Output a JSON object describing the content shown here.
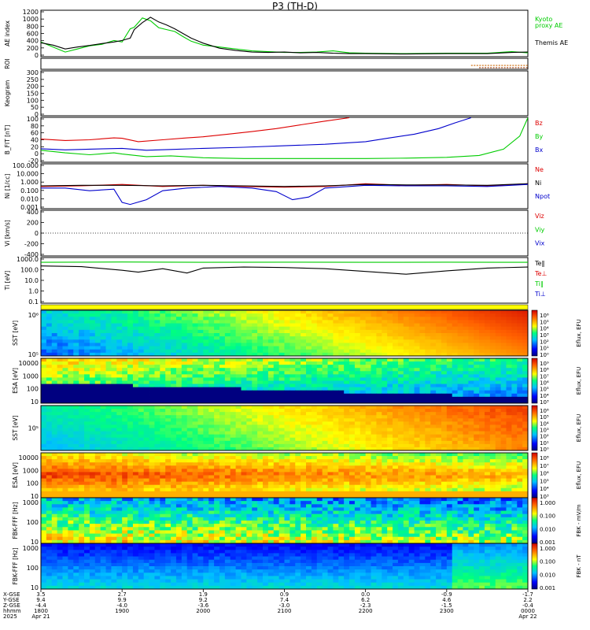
{
  "title": "P3 (TH-D)",
  "chart_data": [
    {
      "id": "ae",
      "type": "line",
      "ylabel": "AE index",
      "ylim": [
        0,
        1200
      ],
      "yticks": [
        "1200",
        "1000",
        "800",
        "600",
        "400",
        "200",
        "0"
      ],
      "legend": [
        "Kyoto",
        "proxy AE",
        "Themis AE"
      ],
      "series": [
        {
          "name": "Kyoto proxy AE",
          "color": "#00cc00",
          "x": [
            0,
            0.15,
            0.3,
            0.45,
            0.6,
            0.75,
            0.9,
            1.0,
            1.1,
            1.15,
            1.25,
            1.35,
            1.45,
            1.55,
            1.65,
            1.75,
            1.85,
            2.0,
            2.2,
            2.4,
            2.6,
            2.8,
            3.0,
            3.2,
            3.4,
            3.6,
            3.8,
            4.0,
            4.5,
            5.0,
            5.5,
            5.8,
            6.0
          ],
          "y": [
            380,
            250,
            120,
            200,
            280,
            320,
            420,
            380,
            720,
            760,
            1000,
            930,
            750,
            700,
            650,
            520,
            400,
            300,
            250,
            200,
            150,
            130,
            110,
            110,
            120,
            150,
            100,
            90,
            80,
            90,
            90,
            130,
            100
          ]
        },
        {
          "name": "Themis AE",
          "color": "#000000",
          "x": [
            0,
            0.15,
            0.3,
            0.45,
            0.6,
            0.75,
            0.9,
            1.0,
            1.1,
            1.15,
            1.25,
            1.35,
            1.45,
            1.55,
            1.65,
            1.75,
            1.85,
            2.0,
            2.2,
            2.4,
            2.6,
            2.8,
            3.0,
            3.2,
            3.4,
            3.6,
            3.8,
            4.0,
            4.5,
            5.0,
            5.5,
            5.8,
            6.0
          ],
          "y": [
            360,
            300,
            200,
            250,
            290,
            340,
            380,
            420,
            480,
            700,
            880,
            1020,
            900,
            820,
            720,
            600,
            480,
            350,
            220,
            160,
            120,
            110,
            120,
            100,
            110,
            90,
            80,
            80,
            70,
            80,
            80,
            110,
            120
          ]
        }
      ]
    },
    {
      "id": "roi",
      "type": "line",
      "ylabel": "ROI",
      "ylim": [
        0,
        1
      ],
      "series": [
        {
          "name": "",
          "color": "#cc6600",
          "x": [
            5.3,
            6.0
          ],
          "y": [
            0.35,
            0.35
          ]
        },
        {
          "name": "",
          "color": "#993300",
          "x": [
            5.4,
            6.0
          ],
          "y": [
            0.15,
            0.15
          ]
        }
      ]
    },
    {
      "id": "keogram",
      "type": "line",
      "ylabel": "Keogram",
      "ylim": [
        0,
        300
      ],
      "yticks": [
        "300",
        "250",
        "200",
        "150",
        "100",
        "50",
        "0"
      ],
      "series": []
    },
    {
      "id": "bfield",
      "type": "line",
      "ylabel": "B_FIT [nT]",
      "ylim": [
        -20,
        100
      ],
      "yticks": [
        "100",
        "80",
        "60",
        "40",
        "20",
        "0",
        "-20"
      ],
      "legend": [
        "Bz",
        "By",
        "Bx"
      ],
      "series": [
        {
          "name": "Bz",
          "color": "#dd0000",
          "x": [
            0,
            0.3,
            0.6,
            0.9,
            1.0,
            1.2,
            1.5,
            1.8,
            2.0,
            2.3,
            2.6,
            2.9,
            3.2,
            3.5,
            3.8
          ],
          "y": [
            42,
            38,
            40,
            45,
            44,
            35,
            40,
            45,
            48,
            55,
            62,
            70,
            80,
            90,
            99
          ]
        },
        {
          "name": "By",
          "color": "#00cc00",
          "x": [
            0,
            0.3,
            0.6,
            0.9,
            1.0,
            1.3,
            1.6,
            2.0,
            2.5,
            3.0,
            3.5,
            4.0,
            4.5,
            5.0,
            5.4,
            5.7,
            5.9,
            6.0
          ],
          "y": [
            12,
            5,
            0,
            5,
            2,
            -5,
            -3,
            -8,
            -10,
            -10,
            -10,
            -10,
            -9,
            -7,
            -2,
            15,
            50,
            99
          ]
        },
        {
          "name": "Bx",
          "color": "#0000cc",
          "x": [
            0,
            0.3,
            0.6,
            1.0,
            1.3,
            1.6,
            2.0,
            2.5,
            3.0,
            3.5,
            4.0,
            4.3,
            4.6,
            4.9,
            5.1,
            5.3
          ],
          "y": [
            16,
            13,
            15,
            17,
            12,
            14,
            17,
            20,
            24,
            28,
            35,
            45,
            55,
            70,
            85,
            99
          ]
        }
      ]
    },
    {
      "id": "density",
      "type": "line",
      "ylabel": "Ni [1/cc]",
      "yscale": "log",
      "ylim": [
        0.001,
        100
      ],
      "yticks": [
        "100.000",
        "10.000",
        "1.000",
        "0.100",
        "0.010",
        "0.001"
      ],
      "legend": [
        "Ne",
        "Ni",
        "Npot"
      ],
      "series": [
        {
          "name": "Ne",
          "color": "#dd0000",
          "x": [
            0,
            0.5,
            1.0,
            1.5,
            2.0,
            2.5,
            3.0,
            3.5,
            4.0,
            4.5,
            5.0,
            5.5,
            6.0
          ],
          "y": [
            0.3,
            0.35,
            0.5,
            0.3,
            0.4,
            0.3,
            0.25,
            0.3,
            0.6,
            0.4,
            0.5,
            0.35,
            0.6
          ]
        },
        {
          "name": "Ni",
          "color": "#000000",
          "x": [
            0,
            0.5,
            1.0,
            1.5,
            2.0,
            2.5,
            3.0,
            3.5,
            4.0,
            4.5,
            5.0,
            5.5,
            6.0
          ],
          "y": [
            0.35,
            0.4,
            0.4,
            0.35,
            0.4,
            0.35,
            0.3,
            0.35,
            0.5,
            0.45,
            0.45,
            0.4,
            0.6
          ]
        },
        {
          "name": "Npot",
          "color": "#0000cc",
          "x": [
            0,
            0.3,
            0.6,
            0.9,
            1.0,
            1.1,
            1.3,
            1.5,
            1.8,
            2.2,
            2.6,
            2.9,
            3.1,
            3.3,
            3.5,
            3.8,
            4.0,
            4.5,
            5.0,
            5.5,
            6.0
          ],
          "y": [
            0.2,
            0.2,
            0.1,
            0.15,
            0.005,
            0.003,
            0.01,
            0.1,
            0.2,
            0.3,
            0.2,
            0.08,
            0.01,
            0.02,
            0.2,
            0.3,
            0.4,
            0.35,
            0.35,
            0.3,
            0.5
          ]
        }
      ]
    },
    {
      "id": "velocity",
      "type": "line",
      "ylabel": "Vi [km/s]",
      "ylim": [
        -500,
        500
      ],
      "yticks": [
        "400",
        "200",
        "0",
        "-200",
        "-400"
      ],
      "legend": [
        "Viz",
        "Viy",
        "Vix"
      ],
      "series": []
    },
    {
      "id": "temperature",
      "type": "line",
      "ylabel": "Ti [eV]",
      "yscale": "log",
      "ylim": [
        0.1,
        10000
      ],
      "yticks": [
        "1000.0",
        "100.0",
        "10.0",
        "1.0",
        "0.1"
      ],
      "legend": [
        "Te‖",
        "Te⊥",
        "Ti‖",
        "Ti⊥"
      ],
      "series": [
        {
          "name": "Ti‖",
          "color": "#00cc00",
          "x": [
            0,
            1.0,
            2.0,
            3.0,
            4.0,
            5.0,
            6.0
          ],
          "y": [
            3000,
            3200,
            3000,
            3100,
            3000,
            3100,
            3000
          ]
        },
        {
          "name": "Te‖",
          "color": "#000000",
          "x": [
            0,
            0.5,
            1.0,
            1.2,
            1.5,
            1.8,
            2.0,
            2.5,
            3.0,
            3.5,
            4.0,
            4.5,
            5.0,
            5.5,
            6.0
          ],
          "y": [
            1200,
            1000,
            400,
            250,
            600,
            200,
            700,
            900,
            800,
            600,
            300,
            150,
            350,
            700,
            900
          ]
        }
      ]
    },
    {
      "id": "sst-e",
      "type": "heatmap",
      "ylabel": "SST [eV]",
      "yticks": [
        "10⁶",
        "10⁵"
      ],
      "colorbar_label": "Eflux, EFU",
      "colorbar_ticks": [
        "10⁶",
        "10⁵",
        "10⁴",
        "10³",
        "10²",
        "10¹",
        "10⁰"
      ]
    },
    {
      "id": "esa-e",
      "type": "heatmap",
      "ylabel": "ESA [eV]",
      "yticks": [
        "10000",
        "1000",
        "100",
        "10"
      ],
      "colorbar_label": "Eflux, EFU",
      "colorbar_ticks": [
        "10⁹",
        "10⁸",
        "10⁷",
        "10⁶",
        "10⁵",
        "10⁴",
        "10³"
      ]
    },
    {
      "id": "sst-i",
      "type": "heatmap",
      "ylabel": "SST [eV]",
      "yticks": [
        "10⁵"
      ],
      "colorbar_label": "Eflux, EFU",
      "colorbar_ticks": [
        "10⁶",
        "10⁵",
        "10⁴",
        "10³",
        "10²",
        "10¹",
        "10⁰"
      ]
    },
    {
      "id": "esa-i",
      "type": "heatmap",
      "ylabel": "ESA [eV]",
      "yticks": [
        "10000",
        "1000",
        "100",
        "10"
      ],
      "colorbar_label": "Eflux, EFU",
      "colorbar_ticks": [
        "10⁸",
        "10⁷",
        "10⁶",
        "10⁵",
        "10⁴",
        "10³"
      ]
    },
    {
      "id": "fbk-fff",
      "type": "heatmap",
      "ylabel": "FBK-FFF [Hz]",
      "yticks": [
        "1000",
        "100",
        "10"
      ],
      "colorbar_label": "FBK - mV/m",
      "colorbar_ticks": [
        "1.000",
        "0.100",
        "0.010",
        "0.001"
      ]
    },
    {
      "id": "fbk-ffi",
      "type": "heatmap",
      "ylabel": "FBK-FFF [Hz]",
      "yticks": [
        "1000",
        "100",
        "10"
      ],
      "colorbar_label": "FBK - nT",
      "colorbar_ticks": [
        "1.000",
        "0.100",
        "0.010",
        "0.001"
      ]
    }
  ],
  "xaxis": {
    "xlim": [
      0,
      6
    ],
    "row_labels": [
      "X-GSE",
      "Y-GSE",
      "Z-GSE",
      "hhmm",
      "2025"
    ],
    "ticks": [
      {
        "x": 0,
        "vals": [
          "3.5",
          "9.4",
          "-4.4",
          "1800",
          "Apr 21"
        ]
      },
      {
        "x": 1,
        "vals": [
          "2.7",
          "9.9",
          "-4.0",
          "1900",
          ""
        ]
      },
      {
        "x": 2,
        "vals": [
          "1.9",
          "9.2",
          "-3.6",
          "2000",
          ""
        ]
      },
      {
        "x": 3,
        "vals": [
          "0.9",
          "7.4",
          "-3.0",
          "2100",
          ""
        ]
      },
      {
        "x": 4,
        "vals": [
          "0.0",
          "6.2",
          "-2.3",
          "2200",
          ""
        ]
      },
      {
        "x": 5,
        "vals": [
          "-0.9",
          "4.6",
          "-1.5",
          "2300",
          ""
        ]
      },
      {
        "x": 6,
        "vals": [
          "-1.7",
          "2.2",
          "-0.4",
          "0000",
          "Apr 22"
        ]
      }
    ]
  },
  "colors": {
    "kyoto": "#00cc00",
    "themis": "#000000"
  }
}
